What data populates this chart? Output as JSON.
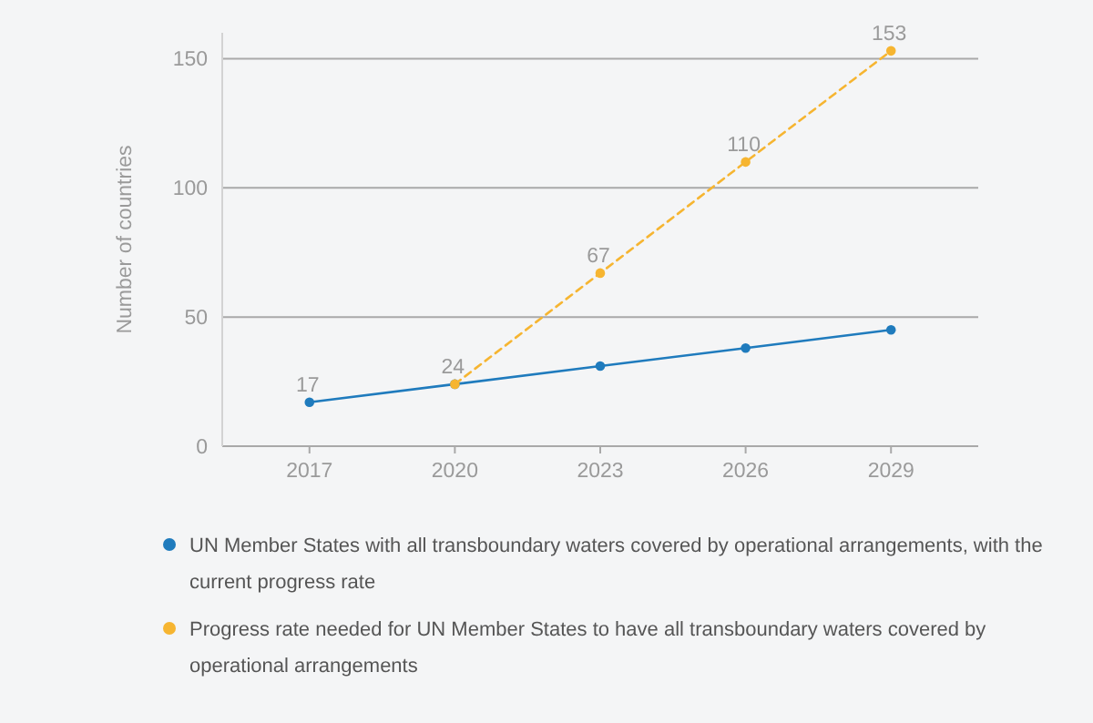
{
  "chart_data": {
    "type": "line",
    "ylabel": "Number of countries",
    "categories": [
      "2017",
      "2020",
      "2023",
      "2026",
      "2029"
    ],
    "ylim": [
      0,
      160
    ],
    "yticks": [
      0,
      50,
      100,
      150
    ],
    "grid": "y",
    "legend": "bottom",
    "marker": "circle",
    "series": [
      {
        "name": "UN Member States with all transboundary waters covered by operational arrangements, with the current progress rate",
        "color": "#1f7bbd",
        "line_style": "solid",
        "values": [
          17,
          24,
          31,
          38,
          45
        ],
        "value_labels": [
          "17",
          "24",
          null,
          null,
          null
        ]
      },
      {
        "name": "Progress rate needed for UN Member States to have all transboundary waters covered by operational arrangements",
        "color": "#f6b531",
        "line_style": "dashed",
        "values": [
          null,
          24,
          67,
          110,
          153
        ],
        "value_labels": [
          null,
          null,
          "67",
          "110",
          "153"
        ]
      }
    ]
  }
}
